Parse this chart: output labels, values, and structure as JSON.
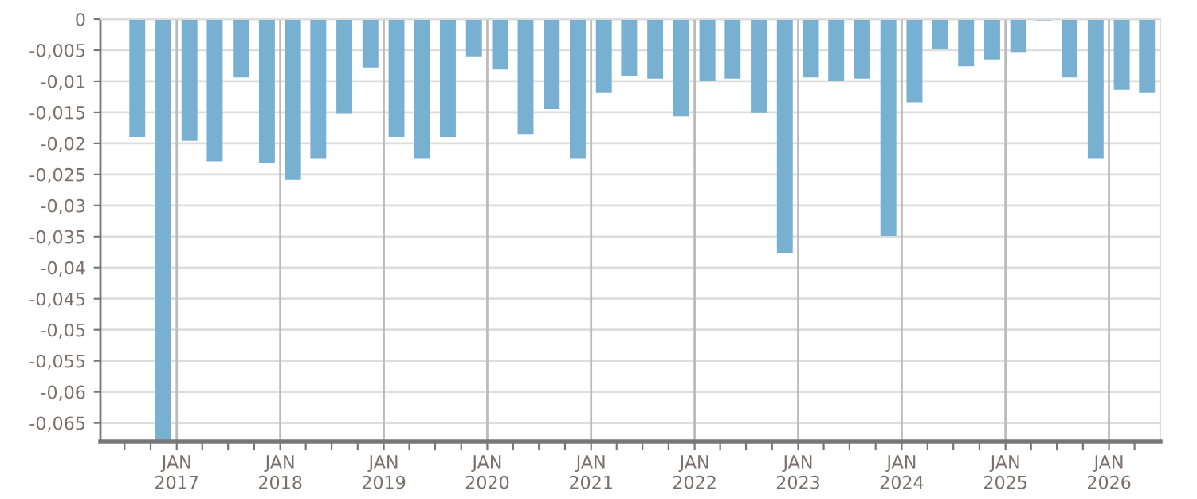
{
  "chart_data": {
    "type": "bar",
    "color": "#78b0d2",
    "x": [
      "2016-08-15",
      "2016-11-15",
      "2017-02-15",
      "2017-05-15",
      "2017-08-15",
      "2017-11-15",
      "2018-02-15",
      "2018-05-15",
      "2018-08-15",
      "2018-11-15",
      "2019-02-15",
      "2019-05-15",
      "2019-08-15",
      "2019-11-15",
      "2020-02-15",
      "2020-05-15",
      "2020-08-15",
      "2020-11-15",
      "2021-02-15",
      "2021-05-15",
      "2021-08-15",
      "2021-11-15",
      "2022-02-15",
      "2022-05-15",
      "2022-08-15",
      "2022-11-15",
      "2023-02-15",
      "2023-05-15",
      "2023-08-15",
      "2023-11-15",
      "2024-02-15",
      "2024-05-15",
      "2024-08-15",
      "2024-11-15",
      "2025-02-15",
      "2025-05-15",
      "2025-08-15",
      "2025-11-15",
      "2026-02-15",
      "2026-05-15"
    ],
    "values": [
      -0.019,
      -0.068,
      -0.0196,
      -0.0229,
      -0.0094,
      -0.0231,
      -0.0259,
      -0.0224,
      -0.0152,
      -0.0078,
      -0.019,
      -0.0224,
      -0.019,
      -0.006,
      -0.0081,
      -0.0185,
      -0.0145,
      -0.0224,
      -0.0119,
      -0.0091,
      -0.0096,
      -0.0157,
      -0.01,
      -0.0096,
      -0.0151,
      -0.0377,
      -0.0094,
      -0.01,
      -0.0096,
      -0.0349,
      -0.0134,
      -0.0048,
      -0.0076,
      -0.0065,
      -0.0053,
      -0.0002,
      -0.0094,
      -0.0224,
      -0.0114,
      -0.0119
    ],
    "xlim": [
      "2016-04-07",
      "2026-07-01"
    ],
    "xticks": [
      {
        "value": "2016-07-01",
        "label": null
      },
      {
        "value": "2016-10-01",
        "label": null
      },
      {
        "value": "2017-01-01",
        "label": "JAN\n2017"
      },
      {
        "value": "2017-04-01",
        "label": null
      },
      {
        "value": "2017-07-01",
        "label": null
      },
      {
        "value": "2017-10-01",
        "label": null
      },
      {
        "value": "2018-01-01",
        "label": "JAN\n2018"
      },
      {
        "value": "2018-04-01",
        "label": null
      },
      {
        "value": "2018-07-01",
        "label": null
      },
      {
        "value": "2018-10-01",
        "label": null
      },
      {
        "value": "2019-01-01",
        "label": "JAN\n2019"
      },
      {
        "value": "2019-04-01",
        "label": null
      },
      {
        "value": "2019-07-01",
        "label": null
      },
      {
        "value": "2019-10-01",
        "label": null
      },
      {
        "value": "2020-01-01",
        "label": "JAN\n2020"
      },
      {
        "value": "2020-04-01",
        "label": null
      },
      {
        "value": "2020-07-01",
        "label": null
      },
      {
        "value": "2020-10-01",
        "label": null
      },
      {
        "value": "2021-01-01",
        "label": "JAN\n2021"
      },
      {
        "value": "2021-04-01",
        "label": null
      },
      {
        "value": "2021-07-01",
        "label": null
      },
      {
        "value": "2021-10-01",
        "label": null
      },
      {
        "value": "2022-01-01",
        "label": "JAN\n2022"
      },
      {
        "value": "2022-04-01",
        "label": null
      },
      {
        "value": "2022-07-01",
        "label": null
      },
      {
        "value": "2022-10-01",
        "label": null
      },
      {
        "value": "2023-01-01",
        "label": "JAN\n2023"
      },
      {
        "value": "2023-04-01",
        "label": null
      },
      {
        "value": "2023-07-01",
        "label": null
      },
      {
        "value": "2023-10-01",
        "label": null
      },
      {
        "value": "2024-01-01",
        "label": "JAN\n2024"
      },
      {
        "value": "2024-04-01",
        "label": null
      },
      {
        "value": "2024-07-01",
        "label": null
      },
      {
        "value": "2024-10-01",
        "label": null
      },
      {
        "value": "2025-01-01",
        "label": "JAN\n2025"
      },
      {
        "value": "2025-04-01",
        "label": null
      },
      {
        "value": "2025-07-01",
        "label": null
      },
      {
        "value": "2025-10-01",
        "label": null
      },
      {
        "value": "2026-01-01",
        "label": "JAN\n2026"
      },
      {
        "value": "2026-04-01",
        "label": null
      }
    ],
    "ylim": [
      -0.068,
      0
    ],
    "yticks": [
      {
        "value": 0,
        "label": "0"
      },
      {
        "value": -0.005,
        "label": "-0,005"
      },
      {
        "value": -0.01,
        "label": "-0,01"
      },
      {
        "value": -0.015,
        "label": "-0,015"
      },
      {
        "value": -0.02,
        "label": "-0,02"
      },
      {
        "value": -0.025,
        "label": "-0,025"
      },
      {
        "value": -0.03,
        "label": "-0,03"
      },
      {
        "value": -0.035,
        "label": "-0,035"
      },
      {
        "value": -0.04,
        "label": "-0,04"
      },
      {
        "value": -0.045,
        "label": "-0,045"
      },
      {
        "value": -0.05,
        "label": "-0,05"
      },
      {
        "value": -0.055,
        "label": "-0,055"
      },
      {
        "value": -0.06,
        "label": "-0,06"
      },
      {
        "value": -0.065,
        "label": "-0,065"
      }
    ],
    "grid": true
  }
}
